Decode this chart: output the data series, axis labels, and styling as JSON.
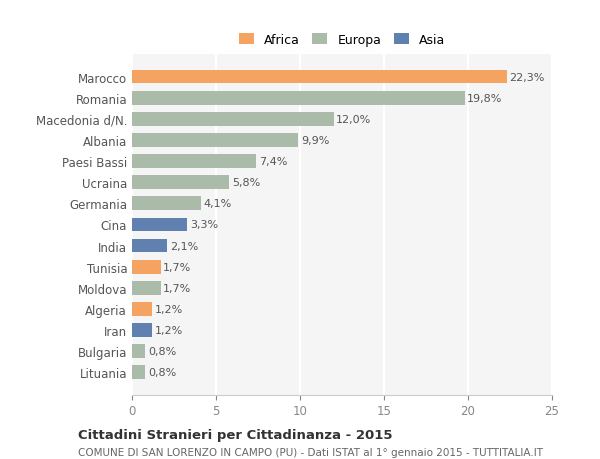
{
  "categories": [
    "Marocco",
    "Romania",
    "Macedonia d/N.",
    "Albania",
    "Paesi Bassi",
    "Ucraina",
    "Germania",
    "Cina",
    "India",
    "Tunisia",
    "Moldova",
    "Algeria",
    "Iran",
    "Bulgaria",
    "Lituania"
  ],
  "values": [
    22.3,
    19.8,
    12.0,
    9.9,
    7.4,
    5.8,
    4.1,
    3.3,
    2.1,
    1.7,
    1.7,
    1.2,
    1.2,
    0.8,
    0.8
  ],
  "labels": [
    "22,3%",
    "19,8%",
    "12,0%",
    "9,9%",
    "7,4%",
    "5,8%",
    "4,1%",
    "3,3%",
    "2,1%",
    "1,7%",
    "1,7%",
    "1,2%",
    "1,2%",
    "0,8%",
    "0,8%"
  ],
  "colors": [
    "#F4A460",
    "#AABBAA",
    "#AABBAA",
    "#AABBAA",
    "#AABBAA",
    "#AABBAA",
    "#AABBAA",
    "#6080B0",
    "#6080B0",
    "#F4A460",
    "#AABBAA",
    "#F4A460",
    "#6080B0",
    "#AABBAA",
    "#AABBAA"
  ],
  "legend": [
    {
      "label": "Africa",
      "color": "#F4A460"
    },
    {
      "label": "Europa",
      "color": "#AABBAA"
    },
    {
      "label": "Asia",
      "color": "#6080B0"
    }
  ],
  "xlim": [
    0,
    25
  ],
  "xticks": [
    0,
    5,
    10,
    15,
    20,
    25
  ],
  "title": "Cittadini Stranieri per Cittadinanza - 2015",
  "subtitle": "COMUNE DI SAN LORENZO IN CAMPO (PU) - Dati ISTAT al 1° gennaio 2015 - TUTTITALIA.IT",
  "bg_color": "#ffffff",
  "plot_bg_color": "#f5f5f5",
  "grid_color": "#ffffff",
  "bar_height": 0.65
}
